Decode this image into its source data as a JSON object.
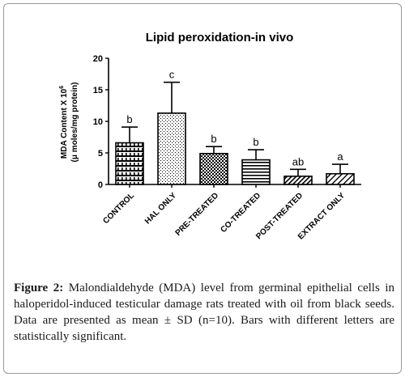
{
  "chart_data": {
    "type": "bar",
    "title": "Lipid peroxidation-in vivo",
    "ylabel_line1": "MDA Content X 10",
    "ylabel_exp": "6",
    "ylabel_line2": "(μ moles/mg protein)",
    "ylim": [
      0,
      20
    ],
    "yticks": [
      "0",
      "5",
      "10",
      "15",
      "20"
    ],
    "categories": [
      "CONTROL",
      "HAL ONLY",
      "PRE-TREATED",
      "CO-TREATED",
      "POST-TREATED",
      "EXTRACT ONLY"
    ],
    "values": [
      6.6,
      11.3,
      4.9,
      3.9,
      1.3,
      1.7
    ],
    "errors": [
      2.5,
      4.9,
      1.1,
      1.6,
      1.1,
      1.5
    ],
    "letters": [
      "b",
      "c",
      "b",
      "b",
      "ab",
      "a"
    ],
    "patterns": [
      "bricks",
      "dots",
      "checker",
      "hlines",
      "diag-dense",
      "diag"
    ],
    "grid": false,
    "legend": "none"
  },
  "caption": {
    "label": "Figure 2:",
    "text": " Malondialdehyde (MDA) level from germinal epithelial cells in haloperidol-induced testicular damage rats treated with oil from black seeds. Data are presented as mean ± SD (n=10). Bars with different letters are statistically significant."
  }
}
